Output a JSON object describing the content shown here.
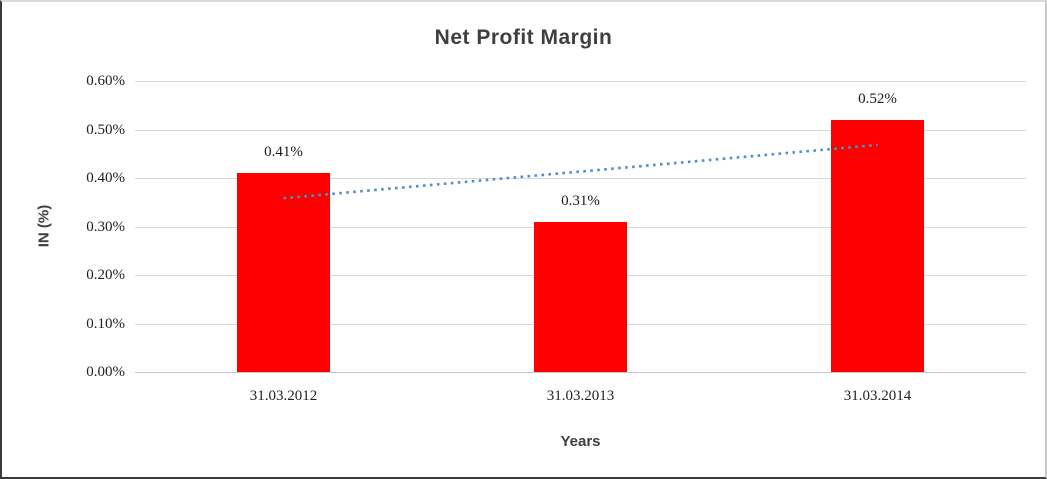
{
  "chart": {
    "title": "Net Profit Margin",
    "y_axis_title": "IN (%)",
    "x_axis_title": "Years"
  },
  "chart_data": {
    "type": "bar",
    "title": "Net Profit Margin",
    "xlabel": "Years",
    "ylabel": "IN (%)",
    "categories": [
      "31.03.2012",
      "31.03.2013",
      "31.03.2014"
    ],
    "values": [
      0.41,
      0.31,
      0.52
    ],
    "value_labels": [
      "0.41%",
      "0.31%",
      "0.52%"
    ],
    "ylim": [
      0,
      0.6
    ],
    "y_ticks": [
      0,
      0.1,
      0.2,
      0.3,
      0.4,
      0.5,
      0.6
    ],
    "y_tick_labels": [
      "0.00%",
      "0.10%",
      "0.20%",
      "0.30%",
      "0.40%",
      "0.50%",
      "0.60%"
    ],
    "grid": true,
    "legend": false,
    "bar_color": "#ff0000",
    "gridline_color": "#d9d9d9",
    "axis_line_color": "#c6c6c6",
    "trendline": {
      "kind": "linear",
      "style": "dotted",
      "color": "#4e8fd2",
      "start_value": 0.3583,
      "end_value": 0.4683
    }
  }
}
